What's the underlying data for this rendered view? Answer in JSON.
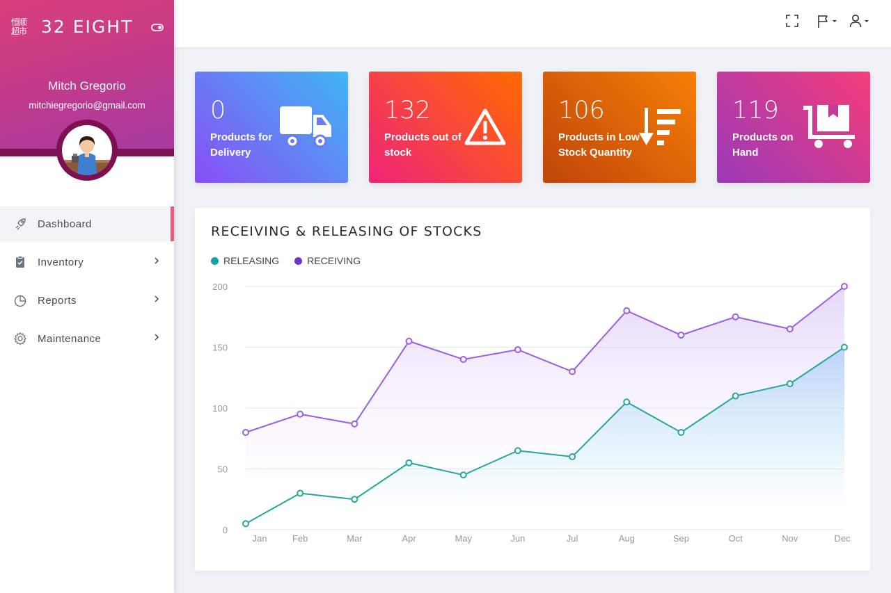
{
  "brand": {
    "logo_text": "恒顺超市",
    "name": "32 EIGHT"
  },
  "user": {
    "name": "Mitch Gregorio",
    "email": "mitchiegregorio@gmail.com"
  },
  "nav": {
    "items": [
      {
        "label": "Dashboard",
        "icon": "rocket-icon",
        "active": true
      },
      {
        "label": "Inventory",
        "icon": "clipboard-icon"
      },
      {
        "label": "Reports",
        "icon": "pie-chart-icon"
      },
      {
        "label": "Maintenance",
        "icon": "gear-icon"
      }
    ]
  },
  "topbar": {
    "icons": [
      "fullscreen-icon",
      "flag-icon",
      "user-icon"
    ]
  },
  "cards": [
    {
      "value": "0",
      "label": "Products for Delivery",
      "icon": "truck-icon",
      "colors": [
        "#8a4df5",
        "#3fb6f5"
      ]
    },
    {
      "value": "132",
      "label": "Products out of stock",
      "icon": "warning-icon",
      "colors": [
        "#f0237a",
        "#ff6a00"
      ]
    },
    {
      "value": "106",
      "label": "Products in Low Stock Quantity",
      "icon": "sort-down-icon",
      "colors": [
        "#c0450a",
        "#f57f06"
      ]
    },
    {
      "value": "119",
      "label": "Products on Hand",
      "icon": "cart-icon",
      "colors": [
        "#9a3ab8",
        "#f53c7a"
      ]
    }
  ],
  "chart_panel": {
    "title": "RECEIVING & RELEASING OF STOCKS",
    "legend": [
      {
        "name": "RELEASING",
        "color": "#11a3a0"
      },
      {
        "name": "RECEIVING",
        "color": "#6d34c9"
      }
    ]
  },
  "chart_data": {
    "type": "area",
    "x": [
      "Jan",
      "Feb",
      "Mar",
      "Apr",
      "May",
      "Jun",
      "Jul",
      "Aug",
      "Sep",
      "Oct",
      "Nov",
      "Dec"
    ],
    "ylim": [
      0,
      200
    ],
    "yticks": [
      0,
      50,
      100,
      150,
      200
    ],
    "grid": true,
    "legend_position": "top-left",
    "series": [
      {
        "name": "RELEASING",
        "color": "#26a69a",
        "values": [
          5,
          30,
          25,
          55,
          45,
          65,
          60,
          105,
          80,
          110,
          120,
          150
        ]
      },
      {
        "name": "RECEIVING",
        "color": "#9b5de5",
        "values": [
          80,
          95,
          87,
          155,
          140,
          148,
          130,
          180,
          160,
          175,
          165,
          200
        ]
      }
    ]
  }
}
